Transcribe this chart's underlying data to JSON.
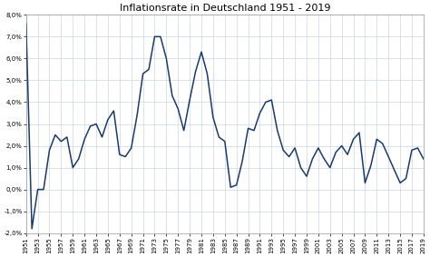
{
  "title": "Inflationsrate in Deutschland 1951 - 2019",
  "years": [
    1951,
    1952,
    1953,
    1954,
    1955,
    1956,
    1957,
    1958,
    1959,
    1960,
    1961,
    1962,
    1963,
    1964,
    1965,
    1966,
    1967,
    1968,
    1969,
    1970,
    1971,
    1972,
    1973,
    1974,
    1975,
    1976,
    1977,
    1978,
    1979,
    1980,
    1981,
    1982,
    1983,
    1984,
    1985,
    1986,
    1987,
    1988,
    1989,
    1990,
    1991,
    1992,
    1993,
    1994,
    1995,
    1996,
    1997,
    1998,
    1999,
    2000,
    2001,
    2002,
    2003,
    2004,
    2005,
    2006,
    2007,
    2008,
    2009,
    2010,
    2011,
    2012,
    2013,
    2014,
    2015,
    2016,
    2017,
    2018,
    2019
  ],
  "values": [
    7.6,
    -1.8,
    0.0,
    0.0,
    1.8,
    2.5,
    2.2,
    2.4,
    1.0,
    1.4,
    2.3,
    2.9,
    3.0,
    2.4,
    3.2,
    3.6,
    1.6,
    1.5,
    1.9,
    3.4,
    5.3,
    5.5,
    7.0,
    7.0,
    6.0,
    4.3,
    3.7,
    2.7,
    4.1,
    5.4,
    6.3,
    5.3,
    3.3,
    2.4,
    2.2,
    0.1,
    0.2,
    1.3,
    2.8,
    2.7,
    3.5,
    4.0,
    4.1,
    2.7,
    1.8,
    1.5,
    1.9,
    1.0,
    0.6,
    1.4,
    1.9,
    1.4,
    1.0,
    1.7,
    2.0,
    1.6,
    2.3,
    2.6,
    0.3,
    1.1,
    2.3,
    2.1,
    1.5,
    0.9,
    0.3,
    0.5,
    1.8,
    1.9,
    1.4
  ],
  "line_color": "#1a3a6b",
  "line_width": 1.1,
  "background_color": "#ffffff",
  "plot_bg_color": "#ffffff",
  "grid_color": "#c8d8e8",
  "ylim": [
    -2.0,
    8.0
  ],
  "yticks": [
    -2.0,
    -1.0,
    0.0,
    1.0,
    2.0,
    3.0,
    4.0,
    5.0,
    6.0,
    7.0,
    8.0
  ],
  "title_fontsize": 8,
  "tick_fontsize": 5.0,
  "xtick_every": 2
}
